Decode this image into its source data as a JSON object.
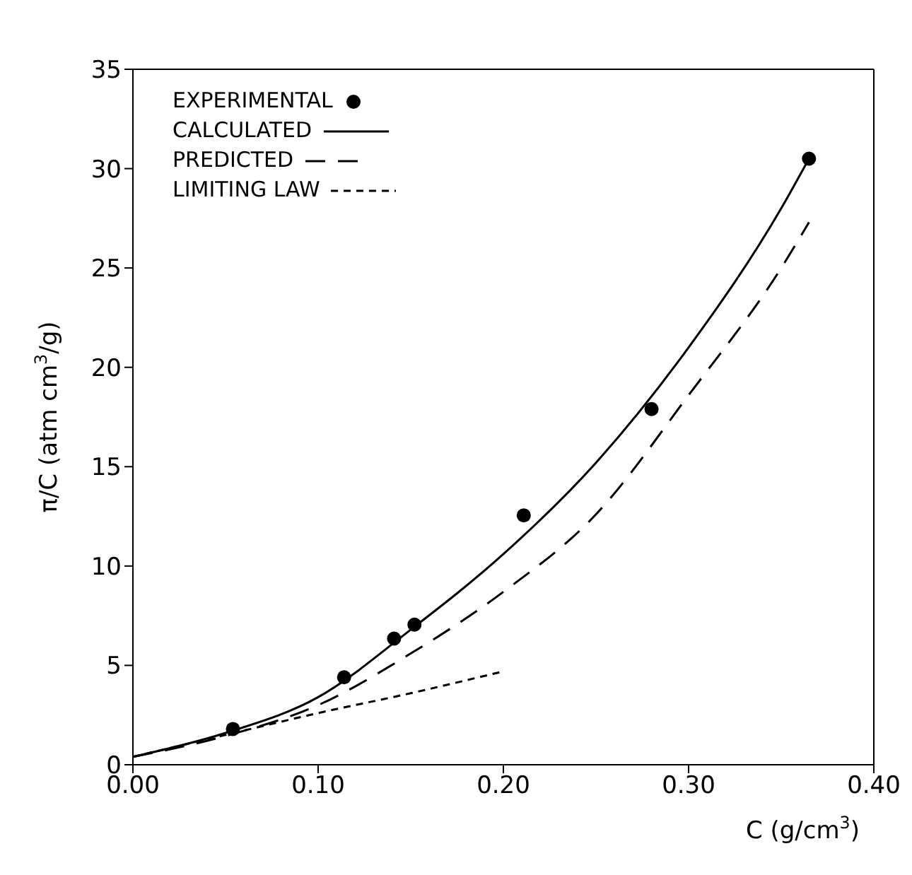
{
  "chart_data": {
    "type": "line",
    "xlabel": "C (g/cm$^{3}$)",
    "ylabel": "π/C (atm cm$^{3}$/g)",
    "xlim": [
      0,
      0.4
    ],
    "xticks": [
      {
        "value": 0,
        "label": "0.00"
      },
      {
        "value": 0.1,
        "label": "0.10"
      },
      {
        "value": 0.2,
        "label": "0.20"
      },
      {
        "value": 0.3,
        "label": "0.30"
      },
      {
        "value": 0.4,
        "label": "0.40"
      }
    ],
    "ylim": [
      0,
      35
    ],
    "yticks": [
      0,
      5,
      10,
      15,
      20,
      25,
      30,
      35
    ],
    "grid": false,
    "legend": "top left",
    "series": [
      {
        "name": "EXPERIMENTAL",
        "type": "scatter",
        "marker": "circle",
        "color": "#000000",
        "x": [
          0.054,
          0.114,
          0.141,
          0.152,
          0.211,
          0.28,
          0.365
        ],
        "values": [
          1.8,
          4.4,
          6.35,
          7.05,
          12.55,
          17.9,
          30.5
        ]
      },
      {
        "name": "CALCULATED",
        "line_style": "solid",
        "color": "#000000",
        "x": [
          0,
          0.05,
          0.1,
          0.15,
          0.2,
          0.25,
          0.3,
          0.35,
          0.365
        ],
        "values": [
          0.4,
          1.6,
          3.4,
          6.8,
          10.6,
          15.2,
          21,
          28,
          30.5
        ]
      },
      {
        "name": "PREDICTED",
        "line_style": "dashed",
        "color": "#000000",
        "x": [
          0,
          0.05,
          0.1,
          0.15,
          0.2,
          0.25,
          0.3,
          0.35,
          0.365
        ],
        "values": [
          0.4,
          1.45,
          3.0,
          5.6,
          8.7,
          12.6,
          18.6,
          25,
          27.3
        ]
      },
      {
        "name": "LIMITING LAW",
        "line_style": "dotted",
        "color": "#000000",
        "x": [
          0,
          0.05,
          0.1,
          0.15,
          0.2
        ],
        "values": [
          0.4,
          1.5,
          2.6,
          3.6,
          4.7
        ]
      }
    ]
  }
}
